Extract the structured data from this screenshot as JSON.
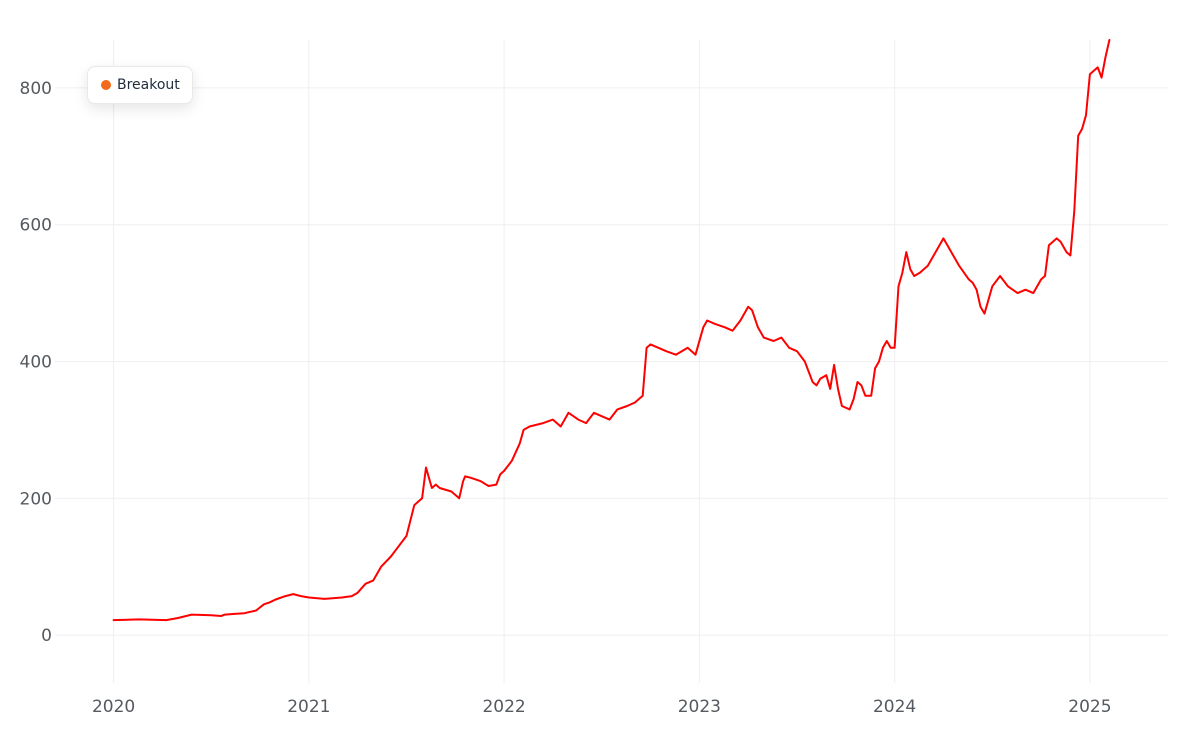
{
  "chart_data": {
    "type": "line",
    "title": "",
    "xlabel": "",
    "ylabel": "",
    "xlim": [
      2019.7,
      2025.4
    ],
    "ylim": [
      -70,
      870
    ],
    "xticks": [
      {
        "value": 2020,
        "label": "2020"
      },
      {
        "value": 2021,
        "label": "2021"
      },
      {
        "value": 2022,
        "label": "2022"
      },
      {
        "value": 2023,
        "label": "2023"
      },
      {
        "value": 2024,
        "label": "2024"
      },
      {
        "value": 2025,
        "label": "2025"
      }
    ],
    "yticks": [
      {
        "value": 0,
        "label": "0"
      },
      {
        "value": 200,
        "label": "200"
      },
      {
        "value": 400,
        "label": "400"
      },
      {
        "value": 600,
        "label": "600"
      },
      {
        "value": 800,
        "label": "800"
      }
    ],
    "grid": true,
    "legend_position": "top-left",
    "legend": [
      {
        "label": "Breakout",
        "color": "#f26a1b"
      }
    ],
    "series": [
      {
        "name": "Breakout",
        "color": "#ff0000",
        "x": [
          2020.0,
          2020.13,
          2020.27,
          2020.33,
          2020.4,
          2020.5,
          2020.55,
          2020.57,
          2020.62,
          2020.67,
          2020.73,
          2020.77,
          2020.8,
          2020.83,
          2020.88,
          2020.92,
          2020.96,
          2021.0,
          2021.08,
          2021.17,
          2021.22,
          2021.25,
          2021.29,
          2021.33,
          2021.37,
          2021.42,
          2021.46,
          2021.5,
          2021.54,
          2021.58,
          2021.6,
          2021.62,
          2021.63,
          2021.65,
          2021.67,
          2021.73,
          2021.77,
          2021.79,
          2021.8,
          2021.83,
          2021.88,
          2021.92,
          2021.96,
          2021.98,
          2022.0,
          2022.04,
          2022.08,
          2022.1,
          2022.13,
          2022.2,
          2022.25,
          2022.29,
          2022.33,
          2022.38,
          2022.42,
          2022.46,
          2022.5,
          2022.54,
          2022.58,
          2022.63,
          2022.67,
          2022.71,
          2022.73,
          2022.75,
          2022.79,
          2022.83,
          2022.88,
          2022.94,
          2022.98,
          2023.02,
          2023.04,
          2023.08,
          2023.13,
          2023.17,
          2023.21,
          2023.25,
          2023.27,
          2023.3,
          2023.33,
          2023.38,
          2023.42,
          2023.46,
          2023.5,
          2023.54,
          2023.58,
          2023.6,
          2023.62,
          2023.65,
          2023.67,
          2023.69,
          2023.71,
          2023.73,
          2023.77,
          2023.79,
          2023.81,
          2023.83,
          2023.85,
          2023.88,
          2023.9,
          2023.92,
          2023.94,
          2023.96,
          2023.98,
          2024.0,
          2024.02,
          2024.04,
          2024.06,
          2024.08,
          2024.1,
          2024.13,
          2024.17,
          2024.21,
          2024.25,
          2024.27,
          2024.29,
          2024.33,
          2024.38,
          2024.4,
          2024.42,
          2024.44,
          2024.46,
          2024.5,
          2024.54,
          2024.58,
          2024.63,
          2024.67,
          2024.71,
          2024.75,
          2024.77,
          2024.79,
          2024.83,
          2024.85,
          2024.88,
          2024.9,
          2024.92,
          2024.94,
          2024.96,
          2024.98,
          2025.0,
          2025.02,
          2025.04,
          2025.06,
          2025.08,
          2025.1
        ],
        "values": [
          22,
          23,
          22,
          25,
          30,
          29,
          28,
          30,
          31,
          32,
          36,
          45,
          48,
          52,
          57,
          60,
          57,
          55,
          53,
          55,
          57,
          62,
          75,
          80,
          100,
          115,
          130,
          145,
          190,
          200,
          245,
          225,
          215,
          220,
          215,
          210,
          200,
          225,
          232,
          230,
          225,
          218,
          220,
          235,
          240,
          255,
          280,
          300,
          305,
          310,
          315,
          305,
          325,
          315,
          310,
          325,
          320,
          315,
          330,
          335,
          340,
          350,
          420,
          425,
          420,
          415,
          410,
          420,
          410,
          450,
          460,
          455,
          450,
          445,
          460,
          480,
          475,
          450,
          435,
          430,
          435,
          420,
          415,
          400,
          370,
          365,
          375,
          380,
          360,
          395,
          360,
          335,
          330,
          345,
          370,
          365,
          350,
          350,
          390,
          400,
          420,
          430,
          420,
          420,
          510,
          530,
          560,
          535,
          525,
          530,
          540,
          560,
          580,
          570,
          560,
          540,
          520,
          515,
          505,
          480,
          470,
          510,
          525,
          510,
          500,
          505,
          500,
          520,
          525,
          570,
          580,
          575,
          560,
          555,
          620,
          730,
          740,
          760,
          820,
          825,
          830,
          815,
          845,
          870
        ]
      }
    ]
  }
}
